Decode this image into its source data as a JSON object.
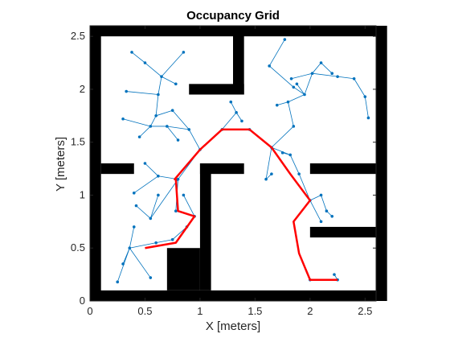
{
  "chart_data": {
    "type": "line",
    "title": "Occupancy Grid",
    "xlabel": "X [meters]",
    "ylabel": "Y [meters]",
    "xlim": [
      0,
      2.6
    ],
    "ylim": [
      0,
      2.6
    ],
    "xticks": [
      0,
      0.5,
      1,
      1.5,
      2,
      2.5
    ],
    "yticks": [
      0,
      0.5,
      1,
      1.5,
      2,
      2.5
    ],
    "xtick_labels": [
      "0",
      "0.5",
      "1",
      "1.5",
      "2",
      "2.5"
    ],
    "ytick_labels": [
      "0",
      "0.5",
      "1",
      "1.5",
      "2",
      "2.5"
    ],
    "grid": false,
    "colors": {
      "obstacle": "#000000",
      "tree": "#0072BD",
      "path": "#FF0000"
    },
    "obstacles": [
      [
        0.0,
        0.0,
        0.1,
        2.6
      ],
      [
        2.6,
        0.0,
        0.1,
        2.6
      ],
      [
        0.0,
        2.5,
        2.6,
        0.1
      ],
      [
        0.0,
        0.0,
        2.6,
        0.1
      ],
      [
        0.1,
        1.2,
        0.3,
        0.1
      ],
      [
        1.3,
        1.95,
        0.1,
        0.65
      ],
      [
        0.9,
        1.95,
        0.5,
        0.1
      ],
      [
        1.0,
        0.1,
        0.1,
        1.2
      ],
      [
        1.0,
        1.2,
        0.4,
        0.1
      ],
      [
        0.7,
        0.1,
        0.3,
        0.4
      ],
      [
        2.0,
        1.2,
        0.6,
        0.1
      ],
      [
        2.0,
        0.6,
        0.6,
        0.1
      ]
    ],
    "tree_edges": [
      [
        [
          0.36,
          0.5
        ],
        [
          0.4,
          0.7
        ]
      ],
      [
        [
          0.36,
          0.5
        ],
        [
          0.6,
          0.55
        ]
      ],
      [
        [
          0.36,
          0.5
        ],
        [
          0.55,
          0.22
        ]
      ],
      [
        [
          0.36,
          0.5
        ],
        [
          0.3,
          0.35
        ]
      ],
      [
        [
          0.36,
          0.5
        ],
        [
          0.25,
          0.18
        ]
      ],
      [
        [
          0.6,
          0.55
        ],
        [
          0.75,
          0.58
        ]
      ],
      [
        [
          0.75,
          0.58
        ],
        [
          0.88,
          0.7
        ]
      ],
      [
        [
          0.88,
          0.7
        ],
        [
          0.95,
          0.8
        ]
      ],
      [
        [
          0.95,
          0.8
        ],
        [
          0.85,
          1.0
        ]
      ],
      [
        [
          0.95,
          0.8
        ],
        [
          0.78,
          0.85
        ]
      ],
      [
        [
          0.78,
          0.85
        ],
        [
          0.8,
          1.15
        ]
      ],
      [
        [
          0.8,
          1.15
        ],
        [
          0.62,
          1.18
        ]
      ],
      [
        [
          0.62,
          1.18
        ],
        [
          0.5,
          1.3
        ]
      ],
      [
        [
          0.62,
          1.18
        ],
        [
          0.4,
          1.02
        ]
      ],
      [
        [
          0.8,
          1.15
        ],
        [
          0.55,
          0.78
        ]
      ],
      [
        [
          0.55,
          0.78
        ],
        [
          0.42,
          0.9
        ]
      ],
      [
        [
          0.55,
          0.78
        ],
        [
          0.62,
          1.0
        ]
      ],
      [
        [
          0.8,
          1.15
        ],
        [
          1.0,
          1.43
        ]
      ],
      [
        [
          1.0,
          1.43
        ],
        [
          0.9,
          1.62
        ]
      ],
      [
        [
          0.9,
          1.62
        ],
        [
          0.7,
          1.65
        ]
      ],
      [
        [
          0.7,
          1.65
        ],
        [
          0.55,
          1.65
        ]
      ],
      [
        [
          0.55,
          1.65
        ],
        [
          0.3,
          1.72
        ]
      ],
      [
        [
          0.55,
          1.65
        ],
        [
          0.6,
          1.75
        ]
      ],
      [
        [
          0.6,
          1.75
        ],
        [
          0.62,
          1.95
        ]
      ],
      [
        [
          0.62,
          1.95
        ],
        [
          0.33,
          1.98
        ]
      ],
      [
        [
          0.62,
          1.95
        ],
        [
          0.65,
          2.12
        ]
      ],
      [
        [
          0.65,
          2.12
        ],
        [
          0.5,
          2.25
        ]
      ],
      [
        [
          0.5,
          2.25
        ],
        [
          0.38,
          2.35
        ]
      ],
      [
        [
          0.65,
          2.12
        ],
        [
          0.85,
          2.35
        ]
      ],
      [
        [
          0.65,
          2.12
        ],
        [
          0.78,
          2.05
        ]
      ],
      [
        [
          0.6,
          1.75
        ],
        [
          0.75,
          1.8
        ]
      ],
      [
        [
          0.75,
          1.8
        ],
        [
          0.9,
          1.62
        ]
      ],
      [
        [
          0.7,
          1.65
        ],
        [
          0.8,
          1.52
        ]
      ],
      [
        [
          0.55,
          1.65
        ],
        [
          0.45,
          1.55
        ]
      ],
      [
        [
          1.0,
          1.43
        ],
        [
          1.2,
          1.62
        ]
      ],
      [
        [
          1.2,
          1.62
        ],
        [
          1.45,
          1.62
        ]
      ],
      [
        [
          1.2,
          1.62
        ],
        [
          1.33,
          1.78
        ]
      ],
      [
        [
          1.33,
          1.78
        ],
        [
          1.28,
          1.88
        ]
      ],
      [
        [
          1.33,
          1.78
        ],
        [
          1.38,
          1.7
        ]
      ],
      [
        [
          1.45,
          1.62
        ],
        [
          1.65,
          1.45
        ]
      ],
      [
        [
          1.65,
          1.45
        ],
        [
          1.82,
          1.38
        ]
      ],
      [
        [
          1.82,
          1.38
        ],
        [
          1.75,
          1.4
        ]
      ],
      [
        [
          1.65,
          1.45
        ],
        [
          1.6,
          1.15
        ]
      ],
      [
        [
          1.6,
          1.15
        ],
        [
          1.65,
          1.2
        ]
      ],
      [
        [
          1.82,
          1.38
        ],
        [
          1.9,
          1.2
        ]
      ],
      [
        [
          1.9,
          1.2
        ],
        [
          2.0,
          0.95
        ]
      ],
      [
        [
          2.0,
          0.95
        ],
        [
          2.1,
          1.0
        ]
      ],
      [
        [
          2.1,
          1.0
        ],
        [
          2.15,
          0.85
        ]
      ],
      [
        [
          2.15,
          0.85
        ],
        [
          2.2,
          0.8
        ]
      ],
      [
        [
          2.0,
          0.95
        ],
        [
          2.1,
          0.75
        ]
      ],
      [
        [
          1.65,
          1.45
        ],
        [
          1.85,
          1.65
        ]
      ],
      [
        [
          1.85,
          1.65
        ],
        [
          1.8,
          1.88
        ]
      ],
      [
        [
          1.8,
          1.88
        ],
        [
          1.7,
          1.85
        ]
      ],
      [
        [
          1.8,
          1.88
        ],
        [
          1.95,
          1.95
        ]
      ],
      [
        [
          1.95,
          1.95
        ],
        [
          1.85,
          2.02
        ]
      ],
      [
        [
          1.85,
          2.02
        ],
        [
          1.63,
          2.22
        ]
      ],
      [
        [
          1.63,
          2.22
        ],
        [
          1.77,
          2.47
        ]
      ],
      [
        [
          1.95,
          1.95
        ],
        [
          2.02,
          2.15
        ]
      ],
      [
        [
          2.02,
          2.15
        ],
        [
          2.1,
          2.25
        ]
      ],
      [
        [
          2.1,
          2.25
        ],
        [
          2.2,
          2.15
        ]
      ],
      [
        [
          2.02,
          2.15
        ],
        [
          2.25,
          2.12
        ]
      ],
      [
        [
          2.25,
          2.12
        ],
        [
          2.4,
          2.1
        ]
      ],
      [
        [
          2.4,
          2.1
        ],
        [
          2.5,
          1.93
        ]
      ],
      [
        [
          2.5,
          1.93
        ],
        [
          2.53,
          1.73
        ]
      ],
      [
        [
          2.02,
          2.15
        ],
        [
          1.83,
          2.1
        ]
      ],
      [
        [
          1.95,
          1.95
        ],
        [
          1.88,
          2.05
        ]
      ],
      [
        [
          2.0,
          0.2
        ],
        [
          2.25,
          0.2
        ]
      ],
      [
        [
          2.25,
          0.2
        ],
        [
          2.22,
          0.25
        ]
      ]
    ],
    "path": {
      "x": [
        0.5,
        0.78,
        0.95,
        0.8,
        0.78,
        0.77,
        1.0,
        1.2,
        1.45,
        1.65,
        1.82,
        2.0,
        1.85,
        1.9,
        2.0,
        2.25
      ],
      "y": [
        0.5,
        0.55,
        0.8,
        0.85,
        1.15,
        1.15,
        1.43,
        1.62,
        1.62,
        1.45,
        1.2,
        0.95,
        0.75,
        0.45,
        0.2,
        0.2
      ]
    }
  }
}
